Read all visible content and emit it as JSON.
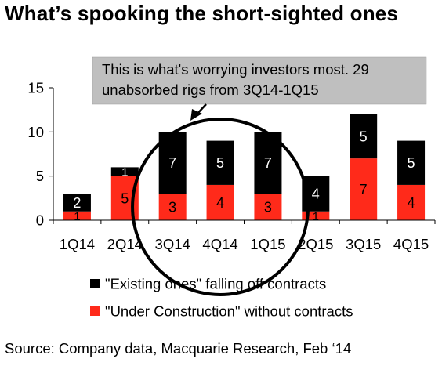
{
  "title": "What’s spooking the short-sighted ones",
  "source": "Source: Company data, Macquarie Research, Feb ‘14",
  "colors": {
    "existing": "#000000",
    "construction": "#ff2a1a",
    "callout_bg": "#bfbfbf",
    "axis": "#000000"
  },
  "chart_data": {
    "type": "bar",
    "stacked": true,
    "categories": [
      "1Q14",
      "2Q14",
      "3Q14",
      "4Q14",
      "1Q15",
      "2Q15",
      "3Q15",
      "4Q15"
    ],
    "series": [
      {
        "name": "\"Under Construction\" without contracts",
        "color": "#ff2a1a",
        "values": [
          1,
          5,
          3,
          4,
          3,
          1,
          7,
          4
        ]
      },
      {
        "name": "\"Existing ones\" falling off contracts",
        "color": "#000000",
        "values": [
          2,
          1,
          7,
          5,
          7,
          4,
          5,
          5
        ]
      }
    ],
    "data_labels": {
      "under_construction": [
        "1",
        "5",
        "3",
        "4",
        "3",
        "1",
        "7",
        "4"
      ],
      "existing": [
        "2",
        "1",
        "7",
        "5",
        "7",
        "4",
        "5",
        "5"
      ]
    },
    "ylim": [
      0,
      15
    ],
    "yticks": [
      0,
      5,
      10,
      15
    ],
    "legend_position": "bottom",
    "annotation": "This is what's worrying investors most. 29 unabsorbed rigs from 3Q14-1Q15",
    "annotation_lines": [
      "This is what's worrying investors most. 29",
      "unabsorbed rigs from 3Q14-1Q15"
    ],
    "highlighted_categories": [
      "3Q14",
      "4Q14",
      "1Q15"
    ],
    "grid": false
  }
}
